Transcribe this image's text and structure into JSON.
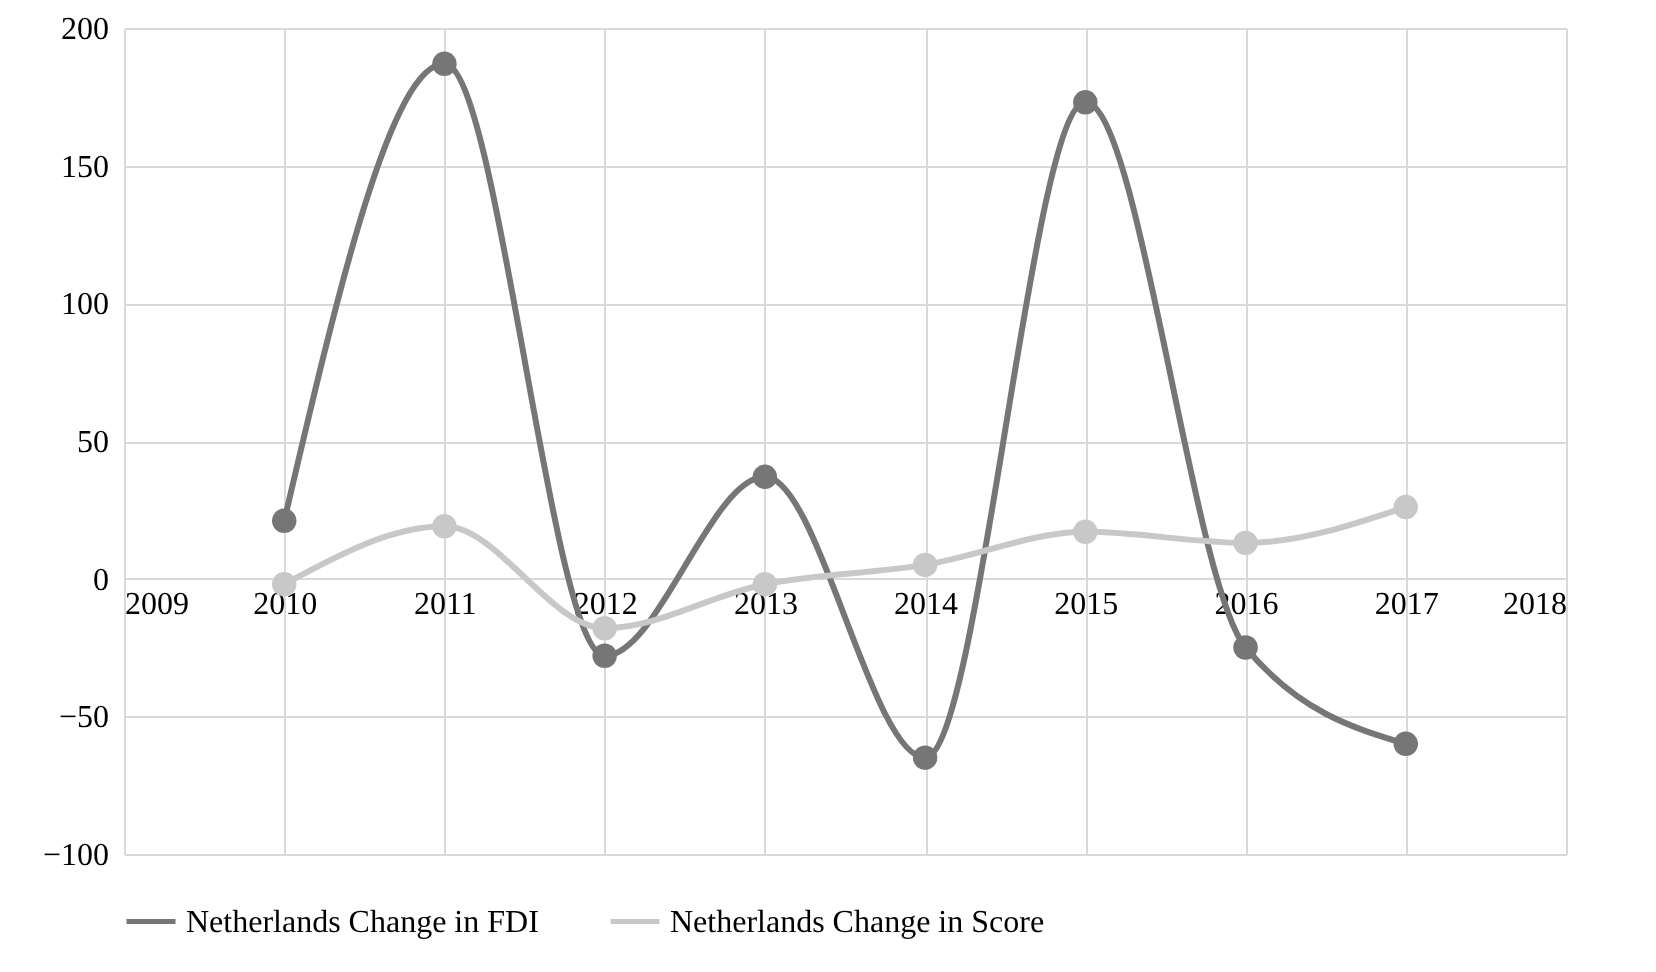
{
  "chart_data": {
    "type": "line",
    "x": [
      2010,
      2011,
      2012,
      2013,
      2014,
      2015,
      2016,
      2017
    ],
    "series": [
      {
        "name": "Netherlands Change in FDI",
        "color": "#767676",
        "values": [
          21,
          187,
          -28,
          37,
          -65,
          173,
          -25,
          -60
        ]
      },
      {
        "name": "Netherlands Change in Score",
        "color": "#c8c8c8",
        "values": [
          -2,
          19,
          -18,
          -2,
          5,
          17,
          13,
          26
        ]
      }
    ],
    "xlim": [
      2009,
      2018
    ],
    "xticks": [
      2009,
      2010,
      2011,
      2012,
      2013,
      2014,
      2015,
      2016,
      2017,
      2018
    ],
    "ylim": [
      -100,
      200
    ],
    "yticks": [
      -100,
      -50,
      0,
      50,
      100,
      150,
      200
    ],
    "grid": true,
    "legend": "bottom",
    "marker": "circle",
    "line_style": "solid"
  }
}
